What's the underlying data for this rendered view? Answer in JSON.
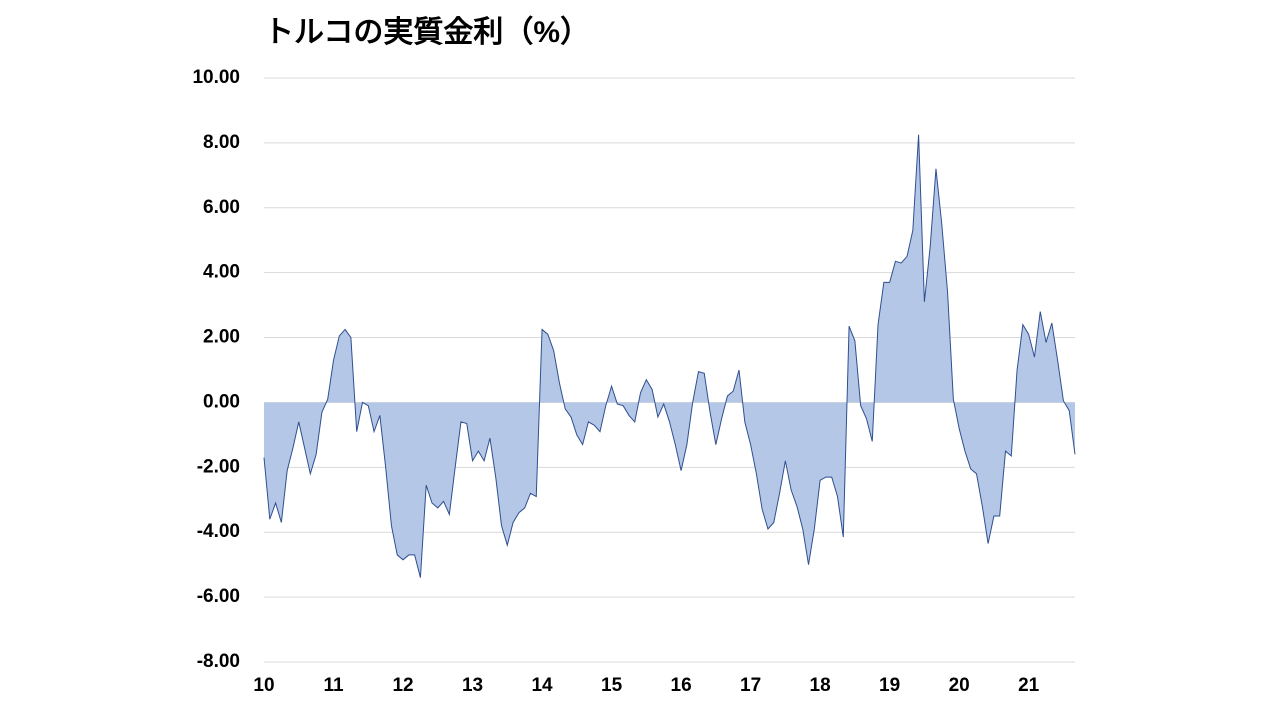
{
  "chart_data": {
    "type": "area",
    "title": "トルコの実質金利（%）",
    "categories": [
      "10",
      null,
      null,
      null,
      null,
      null,
      null,
      null,
      null,
      null,
      null,
      null,
      "11",
      null,
      null,
      null,
      null,
      null,
      null,
      null,
      null,
      null,
      null,
      null,
      "12",
      null,
      null,
      null,
      null,
      null,
      null,
      null,
      null,
      null,
      null,
      null,
      "13",
      null,
      null,
      null,
      null,
      null,
      null,
      null,
      null,
      null,
      null,
      null,
      "14",
      null,
      null,
      null,
      null,
      null,
      null,
      null,
      null,
      null,
      null,
      null,
      "15",
      null,
      null,
      null,
      null,
      null,
      null,
      null,
      null,
      null,
      null,
      null,
      "16",
      null,
      null,
      null,
      null,
      null,
      null,
      null,
      null,
      null,
      null,
      null,
      "17",
      null,
      null,
      null,
      null,
      null,
      null,
      null,
      null,
      null,
      null,
      null,
      "18",
      null,
      null,
      null,
      null,
      null,
      null,
      null,
      null,
      null,
      null,
      null,
      "19",
      null,
      null,
      null,
      null,
      null,
      null,
      null,
      null,
      null,
      null,
      null,
      "20",
      null,
      null,
      null,
      null,
      null,
      null,
      null,
      null,
      null,
      null,
      null,
      "21",
      null,
      null,
      null,
      null,
      null,
      null,
      null,
      null
    ],
    "values": [
      -1.7,
      -3.6,
      -3.1,
      -3.7,
      -2.1,
      -1.4,
      -0.6,
      -1.4,
      -2.2,
      -1.6,
      -0.3,
      0.1,
      1.3,
      2.05,
      2.25,
      2.0,
      -0.9,
      0.0,
      -0.1,
      -0.9,
      -0.4,
      -2.0,
      -3.8,
      -4.7,
      -4.85,
      -4.7,
      -4.7,
      -5.4,
      -2.55,
      -3.1,
      -3.25,
      -3.05,
      -3.45,
      -2.0,
      -0.6,
      -0.65,
      -1.8,
      -1.5,
      -1.8,
      -1.1,
      -2.3,
      -3.8,
      -4.4,
      -3.7,
      -3.4,
      -3.25,
      -2.8,
      -2.9,
      2.25,
      2.1,
      1.6,
      0.6,
      -0.2,
      -0.45,
      -1.0,
      -1.3,
      -0.6,
      -0.7,
      -0.9,
      -0.1,
      0.5,
      -0.05,
      -0.1,
      -0.4,
      -0.6,
      0.3,
      0.7,
      0.4,
      -0.45,
      -0.05,
      -0.6,
      -1.3,
      -2.1,
      -1.3,
      0.0,
      0.95,
      0.9,
      -0.3,
      -1.3,
      -0.5,
      0.2,
      0.35,
      1.0,
      -0.6,
      -1.3,
      -2.2,
      -3.3,
      -3.9,
      -3.7,
      -2.8,
      -1.8,
      -2.7,
      -3.2,
      -3.9,
      -5.0,
      -3.9,
      -2.4,
      -2.3,
      -2.3,
      -2.9,
      -4.15,
      2.35,
      1.9,
      -0.1,
      -0.5,
      -1.2,
      2.4,
      3.7,
      3.7,
      4.35,
      4.3,
      4.5,
      5.3,
      8.25,
      3.1,
      4.8,
      7.2,
      5.5,
      3.4,
      0.1,
      -0.8,
      -1.5,
      -2.05,
      -2.2,
      -3.2,
      -4.35,
      -3.5,
      -3.5,
      -1.5,
      -1.65,
      1.0,
      2.4,
      2.1,
      1.4,
      2.8,
      1.85,
      2.45,
      1.3,
      0.05,
      -0.25,
      -1.6
    ],
    "color": "#b4c7e7",
    "line_color": "#2f4f8f",
    "negative_tick_color": "#ff0000",
    "ylim": [
      -8,
      10
    ],
    "yticks": [
      {
        "value": 10,
        "label": "10.00"
      },
      {
        "value": 8,
        "label": "8.00"
      },
      {
        "value": 6,
        "label": "6.00"
      },
      {
        "value": 4,
        "label": "4.00"
      },
      {
        "value": 2,
        "label": "2.00"
      },
      {
        "value": 0,
        "label": "0.00"
      },
      {
        "value": -2,
        "label": "-2.00"
      },
      {
        "value": -4,
        "label": "-4.00"
      },
      {
        "value": -6,
        "label": "-6.00"
      },
      {
        "value": -8,
        "label": "-8.00"
      }
    ],
    "grid": true
  }
}
